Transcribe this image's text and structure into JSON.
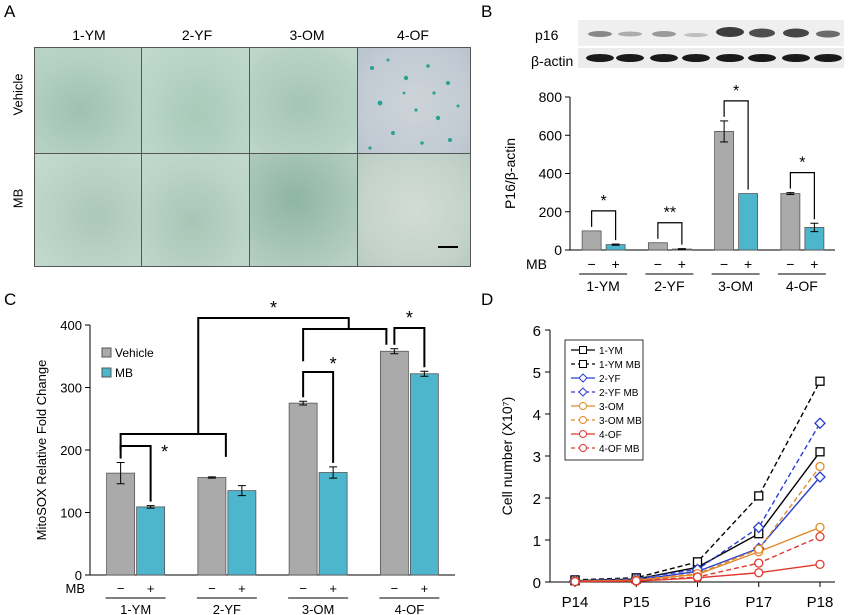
{
  "panels": {
    "A": {
      "label": "A",
      "columns": [
        "1-YM",
        "2-YF",
        "3-OM",
        "4-OF"
      ],
      "rows": [
        "Vehicle",
        "MB"
      ]
    },
    "B": {
      "label": "B",
      "blot_labels": [
        "p16",
        "β-actin"
      ]
    },
    "C": {
      "label": "C"
    },
    "D": {
      "label": "D"
    }
  },
  "colors": {
    "vehicle": "#aaaaaa",
    "mb": "#4db6cc",
    "series": {
      "1-YM": "#000000",
      "2-YF": "#2a3fd0",
      "3-OM": "#e08a2a",
      "4-OF": "#e0392e"
    }
  },
  "chart_data": [
    {
      "id": "B",
      "type": "bar",
      "ylabel": "P16/β-actin",
      "ylim": [
        0,
        800
      ],
      "yticks": [
        0,
        200,
        400,
        600,
        800
      ],
      "groups": [
        "1-YM",
        "2-YF",
        "3-OM",
        "4-OF"
      ],
      "x_prefix": "MB",
      "treatment_marks": [
        "−",
        "+"
      ],
      "series": [
        {
          "values": [
            100,
            38,
            620,
            295
          ],
          "errors": [
            0,
            0,
            55,
            5
          ]
        },
        {
          "values": [
            28,
            5,
            295,
            118
          ],
          "errors": [
            3,
            2,
            0,
            22
          ]
        }
      ],
      "significance": [
        {
          "group": "1-YM",
          "label": "*"
        },
        {
          "group": "2-YF",
          "label": "**"
        },
        {
          "group": "3-OM",
          "label": "*"
        },
        {
          "group": "4-OF",
          "label": "*"
        }
      ]
    },
    {
      "id": "C",
      "type": "bar",
      "ylabel": "MitoSOX Relative Fold Change",
      "ylim": [
        0,
        400
      ],
      "yticks": [
        0,
        100,
        200,
        300,
        400
      ],
      "groups": [
        "1-YM",
        "2-YF",
        "3-OM",
        "4-OF"
      ],
      "x_prefix": "MB",
      "treatment_marks": [
        "−",
        "+"
      ],
      "legend": [
        "Vehicle",
        "MB"
      ],
      "series": [
        {
          "name": "Vehicle",
          "values": [
            163,
            156,
            275,
            358
          ],
          "errors": [
            17,
            1,
            3,
            4
          ]
        },
        {
          "name": "MB",
          "values": [
            109,
            135,
            164,
            322
          ],
          "errors": [
            2,
            8,
            9,
            4
          ]
        }
      ],
      "significance": [
        "*",
        "*",
        "*",
        "*"
      ]
    },
    {
      "id": "D",
      "type": "line",
      "ylabel": "Cell number  (X10⁷)",
      "categories": [
        "P14",
        "P15",
        "P16",
        "P17",
        "P18"
      ],
      "ylim": [
        0,
        6
      ],
      "yticks": [
        0,
        1,
        2,
        3,
        4,
        5,
        6
      ],
      "series": [
        {
          "name": "1-YM",
          "values": [
            0.03,
            0.07,
            0.35,
            1.15,
            3.1
          ],
          "dashed": false,
          "marker": "square"
        },
        {
          "name": "1-YM MB",
          "values": [
            0.05,
            0.1,
            0.48,
            2.05,
            4.78
          ],
          "dashed": true,
          "marker": "square"
        },
        {
          "name": "2-YF",
          "values": [
            0.02,
            0.05,
            0.25,
            0.8,
            2.5
          ],
          "dashed": false,
          "marker": "diamond"
        },
        {
          "name": "2-YF MB",
          "values": [
            0.03,
            0.08,
            0.3,
            1.3,
            3.78
          ],
          "dashed": true,
          "marker": "diamond"
        },
        {
          "name": "3-OM",
          "values": [
            0.02,
            0.04,
            0.18,
            0.72,
            1.3
          ],
          "dashed": false,
          "marker": "circle"
        },
        {
          "name": "3-OM MB",
          "values": [
            0.02,
            0.05,
            0.2,
            0.78,
            2.75
          ],
          "dashed": true,
          "marker": "circle"
        },
        {
          "name": "4-OF",
          "values": [
            0.01,
            0.02,
            0.1,
            0.22,
            0.42
          ],
          "dashed": false,
          "marker": "circle"
        },
        {
          "name": "4-OF MB",
          "values": [
            0.01,
            0.03,
            0.12,
            0.45,
            1.08
          ],
          "dashed": true,
          "marker": "circle"
        }
      ]
    }
  ]
}
